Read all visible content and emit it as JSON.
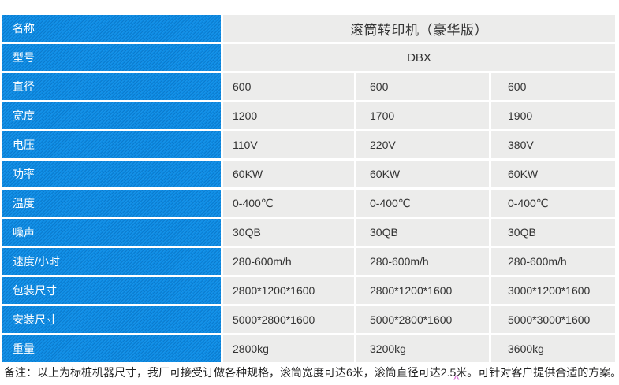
{
  "colors": {
    "header_blue": "#0d8de6",
    "cell_gray": "#ececeb",
    "text_dark": "#333333",
    "label_text": "#ffffff",
    "cursor_pink": "#d878d8"
  },
  "table": {
    "name_row": {
      "label": "名称",
      "value": "滚筒转印机（豪华版）"
    },
    "model_row": {
      "label": "型号",
      "value": "DBX"
    },
    "spec_rows": [
      {
        "label": "直径",
        "values": [
          "600",
          "600",
          "600"
        ]
      },
      {
        "label": "宽度",
        "values": [
          "1200",
          "1700",
          "1900"
        ]
      },
      {
        "label": "电压",
        "values": [
          "110V",
          "220V",
          "380V"
        ]
      },
      {
        "label": "功率",
        "values": [
          "60KW",
          "60KW",
          "60KW"
        ]
      },
      {
        "label": "温度",
        "values": [
          "0-400℃",
          "0-400℃",
          "0-400℃"
        ]
      },
      {
        "label": "噪声",
        "values": [
          "30QB",
          "30QB",
          "30QB"
        ]
      },
      {
        "label": "速度/小时",
        "values": [
          "280-600m/h",
          "280-600m/h",
          "280-600m/h"
        ]
      },
      {
        "label": "包装尺寸",
        "values": [
          "2800*1200*1600",
          "2800*1200*1600",
          "3000*1200*1600"
        ]
      },
      {
        "label": "安装尺寸",
        "values": [
          "5000*2800*1600",
          "5000*2800*1600",
          "5000*3000*1600"
        ]
      },
      {
        "label": "重量",
        "values": [
          "2800kg",
          "3200kg",
          "3600kg"
        ]
      }
    ]
  },
  "footnote": "备注：以上为标桩机器尺寸，我厂可接受订做各种规格，滚筒宽度可达6米，滚筒直径可达2.5米。可针对客户提供合适的方案。",
  "cursor_mark": "^"
}
